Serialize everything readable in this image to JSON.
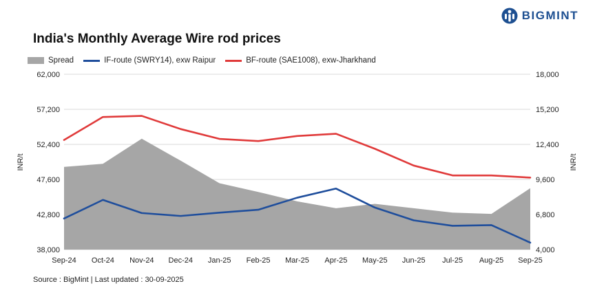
{
  "brand": {
    "name": "BIGMINT",
    "logo_icon": "bigmint-logo-icon",
    "color": "#1d4f91"
  },
  "chart_data": {
    "type": "line",
    "title": "India's Monthly Average Wire rod prices",
    "categories": [
      "Sep-24",
      "Oct-24",
      "Nov-24",
      "Dec-24",
      "Jan-25",
      "Feb-25",
      "Mar-25",
      "Apr-25",
      "May-25",
      "Jun-25",
      "Jul-25",
      "Aug-25",
      "Sep-25"
    ],
    "y_left": {
      "label": "INR/t",
      "ylim": [
        38000,
        62000
      ],
      "ticks": [
        38000,
        42800,
        47600,
        52400,
        57200,
        62000
      ],
      "tick_labels": [
        "38,000",
        "42,800",
        "47,600",
        "52,400",
        "57,200",
        "62,000"
      ]
    },
    "y_right": {
      "label": "INR/t",
      "ylim": [
        4000,
        18000
      ],
      "ticks": [
        4000,
        6800,
        9600,
        12400,
        15200,
        18000
      ],
      "tick_labels": [
        "4,000",
        "6,800",
        "9,600",
        "12,400",
        "15,200",
        "18,000"
      ]
    },
    "series": [
      {
        "name": "Spread",
        "type": "area",
        "axis": "right",
        "color": "#a6a6a6",
        "values": [
          10600,
          10850,
          12850,
          11100,
          9300,
          8600,
          7850,
          7300,
          7650,
          7300,
          6950,
          6850,
          8900
        ]
      },
      {
        "name": "IF-route (SWRY14), exw Raipur",
        "type": "line",
        "axis": "left",
        "color": "#1f4e9c",
        "values": [
          42250,
          44800,
          43000,
          42600,
          43050,
          43450,
          45100,
          46350,
          43750,
          42000,
          41250,
          41350,
          38950
        ]
      },
      {
        "name": "BF-route (SAE1008), exw-Jharkhand",
        "type": "line",
        "axis": "left",
        "color": "#e03a3a",
        "values": [
          53000,
          56150,
          56300,
          54500,
          53150,
          52850,
          53550,
          53850,
          51800,
          49500,
          48150,
          48150,
          47850
        ]
      }
    ],
    "legend_position": "top-left",
    "grid": "horizontal"
  },
  "footer": {
    "source": "Source : BigMint | Last updated : 30-09-2025"
  }
}
